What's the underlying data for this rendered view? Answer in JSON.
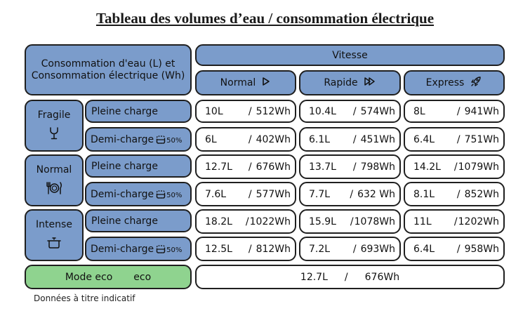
{
  "title": "Tableau des volumes d’eau / consommation électrique",
  "header": {
    "main_line1": "Consommation d'eau (L) et",
    "main_line2": "Consommation électrique (Wh)",
    "vitesse": "Vitesse",
    "speeds": [
      {
        "label": "Normal",
        "icon": "play-outline-icon"
      },
      {
        "label": "Rapide",
        "icon": "fast-forward-icon"
      },
      {
        "label": "Express",
        "icon": "rocket-icon"
      }
    ]
  },
  "groups": [
    {
      "name": "Fragile",
      "icon": "wine-glass-icon",
      "rows": [
        {
          "label": "Pleine charge",
          "values": [
            [
              "10L",
              "512Wh"
            ],
            [
              "10.4L",
              "574Wh"
            ],
            [
              "8L",
              "941Wh"
            ]
          ]
        },
        {
          "label": "Demi-charge",
          "badge": "50%",
          "values": [
            [
              "6L",
              "402Wh"
            ],
            [
              "6.1L",
              "451Wh"
            ],
            [
              "6.4L",
              "751Wh"
            ]
          ]
        }
      ]
    },
    {
      "name": "Normal",
      "icon": "plate-cutlery-icon",
      "rows": [
        {
          "label": "Pleine charge",
          "values": [
            [
              "12.7L",
              "676Wh"
            ],
            [
              "13.7L",
              "798Wh"
            ],
            [
              "14.2L",
              "1079Wh"
            ]
          ]
        },
        {
          "label": "Demi-charge",
          "badge": "50%",
          "values": [
            [
              "7.6L",
              "577Wh"
            ],
            [
              "7.7L",
              "632 Wh"
            ],
            [
              "8.1L",
              "852Wh"
            ]
          ]
        }
      ]
    },
    {
      "name": "Intense",
      "icon": "pot-icon",
      "rows": [
        {
          "label": "Pleine charge",
          "values": [
            [
              "18.2L",
              "1022Wh"
            ],
            [
              "15.9L",
              "1078Wh"
            ],
            [
              "11L",
              "1202Wh"
            ]
          ]
        },
        {
          "label": "Demi-charge",
          "badge": "50%",
          "values": [
            [
              "12.5L",
              "812Wh"
            ],
            [
              "7.2L",
              "693Wh"
            ],
            [
              "6.4L",
              "958Wh"
            ]
          ]
        }
      ]
    }
  ],
  "eco": {
    "label": "Mode eco",
    "word": "eco",
    "water": "12.7L",
    "sep": "/",
    "power": "676Wh"
  },
  "footer": "Données à  titre indicatif",
  "colors": {
    "header_blue": "#7b9ccb",
    "eco_green": "#8fd38f",
    "border": "#1f1f1f"
  }
}
